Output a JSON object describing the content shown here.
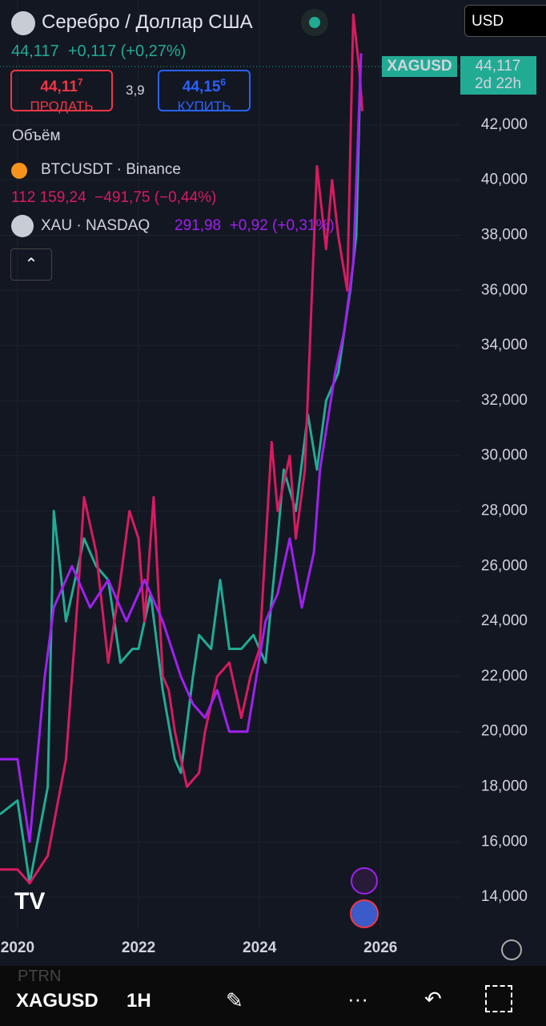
{
  "header": {
    "title": "Серебро / Доллар США",
    "price": "44,117",
    "change": "+0,117",
    "change_pct": "(+0,27%)",
    "sell_main": "44,11",
    "sell_sup": "7",
    "sell_label": "ПРОДАТЬ",
    "spread": "3,9",
    "buy_main": "44,15",
    "buy_sup": "6",
    "buy_label": "КУПИТЬ",
    "currency": "USD",
    "volume_label": "Объём",
    "btc_name": "BTCUSDT · Binance",
    "btc_price": "112 159,24",
    "btc_change": "−491,75",
    "btc_pct": "(−0,44%)",
    "xau_name": "XAU · NASDAQ",
    "xau_price": "291,98",
    "xau_change": "+0,92",
    "xau_pct": "(+0,31%)"
  },
  "chart_data": {
    "type": "line",
    "xlim": [
      2019.71,
      2027.32
    ],
    "xticks": [
      2020,
      2022,
      2024,
      2026
    ],
    "ylim": [
      12870,
      46530
    ],
    "yticks": [
      {
        "value": 14000,
        "label": "14,000"
      },
      {
        "value": 16000,
        "label": "16,000"
      },
      {
        "value": 18000,
        "label": "18,000"
      },
      {
        "value": 20000,
        "label": "20,000"
      },
      {
        "value": 22000,
        "label": "22,000"
      },
      {
        "value": 24000,
        "label": "24,000"
      },
      {
        "value": 26000,
        "label": "26,000"
      },
      {
        "value": 28000,
        "label": "28,000"
      },
      {
        "value": 30000,
        "label": "30,000"
      },
      {
        "value": 32000,
        "label": "32,000"
      },
      {
        "value": 34000,
        "label": "34,000"
      },
      {
        "value": 36000,
        "label": "36,000"
      },
      {
        "value": 38000,
        "label": "38,000"
      },
      {
        "value": 40000,
        "label": "40,000"
      },
      {
        "value": 42000,
        "label": "42,000"
      }
    ],
    "price_tag": {
      "symbol": "XAGUSD",
      "value": 44117,
      "label": "44,117",
      "countdown": "2d 22h"
    },
    "series": [
      {
        "name": "XAGUSD",
        "color": "#22ab94",
        "x": [
          2019.71,
          2020.0,
          2020.2,
          2020.5,
          2020.6,
          2020.8,
          2021.0,
          2021.1,
          2021.3,
          2021.5,
          2021.7,
          2021.9,
          2022.0,
          2022.2,
          2022.4,
          2022.6,
          2022.7,
          2022.9,
          2023.0,
          2023.2,
          2023.35,
          2023.5,
          2023.7,
          2023.9,
          2024.1,
          2024.3,
          2024.4,
          2024.6,
          2024.8,
          2024.95,
          2025.1,
          2025.3,
          2025.5,
          2025.6,
          2025.67
        ],
        "values": [
          17000,
          17500,
          14500,
          18000,
          28000,
          24000,
          26000,
          27000,
          26000,
          25500,
          22500,
          23000,
          23000,
          25000,
          21500,
          19000,
          18500,
          22000,
          23500,
          23000,
          25500,
          23000,
          23000,
          23500,
          22500,
          27000,
          29500,
          28000,
          31500,
          29500,
          32000,
          33000,
          36000,
          38000,
          44117
        ]
      },
      {
        "name": "BTCUSDT",
        "color": "#d81b60",
        "x": [
          2019.71,
          2020.0,
          2020.2,
          2020.5,
          2020.8,
          2021.0,
          2021.1,
          2021.3,
          2021.5,
          2021.7,
          2021.85,
          2022.0,
          2022.1,
          2022.25,
          2022.4,
          2022.5,
          2022.6,
          2022.8,
          2023.0,
          2023.1,
          2023.3,
          2023.5,
          2023.7,
          2023.85,
          2024.0,
          2024.2,
          2024.3,
          2024.5,
          2024.6,
          2024.75,
          2024.85,
          2024.95,
          2025.1,
          2025.2,
          2025.3,
          2025.45,
          2025.55,
          2025.65,
          2025.7
        ],
        "values": [
          15000,
          15000,
          14500,
          15500,
          19000,
          25000,
          28500,
          26500,
          22500,
          25500,
          28000,
          27000,
          24000,
          28500,
          22000,
          21500,
          20000,
          18000,
          18500,
          20000,
          22000,
          22500,
          20500,
          22000,
          23000,
          30500,
          28000,
          30000,
          27000,
          29500,
          35000,
          40500,
          37500,
          40000,
          38000,
          36000,
          46000,
          44000,
          42500
        ]
      },
      {
        "name": "XAU",
        "color": "#a020f0",
        "x": [
          2019.71,
          2020.0,
          2020.2,
          2020.45,
          2020.6,
          2020.9,
          2021.2,
          2021.5,
          2021.8,
          2022.1,
          2022.4,
          2022.7,
          2022.9,
          2023.1,
          2023.3,
          2023.5,
          2023.8,
          2024.1,
          2024.3,
          2024.5,
          2024.7,
          2024.9,
          2025.0,
          2025.25,
          2025.4,
          2025.55,
          2025.68
        ],
        "values": [
          19000,
          19000,
          16000,
          22000,
          24500,
          26000,
          24500,
          25500,
          24000,
          25500,
          24000,
          22000,
          21000,
          20500,
          21500,
          20000,
          20000,
          24000,
          25000,
          27000,
          24500,
          26500,
          29500,
          33000,
          34500,
          37000,
          44600
        ]
      }
    ]
  },
  "footer": {
    "symbol": "XAGUSD",
    "interval": "1H",
    "hint": "PTRN"
  }
}
